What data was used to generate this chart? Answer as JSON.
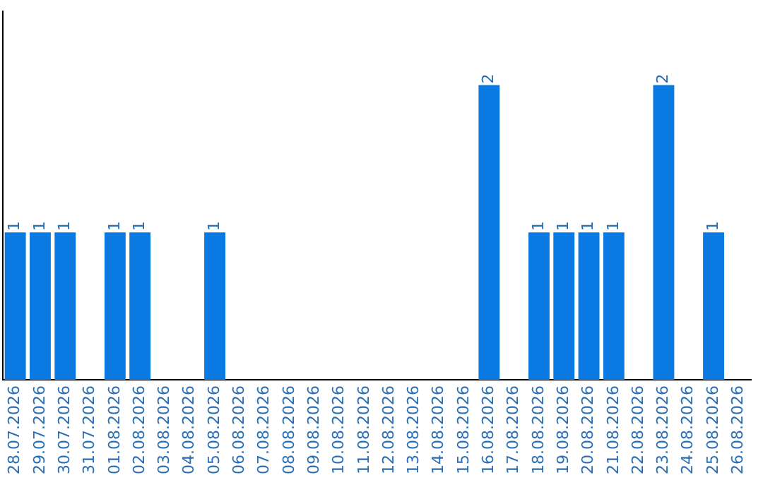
{
  "chart_data": {
    "type": "bar",
    "categories": [
      "28.07.2026",
      "29.07.2026",
      "30.07.2026",
      "31.07.2026",
      "01.08.2026",
      "02.08.2026",
      "03.08.2026",
      "04.08.2026",
      "05.08.2026",
      "06.08.2026",
      "07.08.2026",
      "08.08.2026",
      "09.08.2026",
      "10.08.2026",
      "11.08.2026",
      "12.08.2026",
      "13.08.2026",
      "14.08.2026",
      "15.08.2026",
      "16.08.2026",
      "17.08.2026",
      "18.08.2026",
      "19.08.2026",
      "20.08.2026",
      "21.08.2026",
      "22.08.2026",
      "23.08.2026",
      "24.08.2026",
      "25.08.2026",
      "26.08.2026"
    ],
    "values": [
      1,
      1,
      1,
      0,
      1,
      1,
      0,
      0,
      1,
      0,
      0,
      0,
      0,
      0,
      0,
      0,
      0,
      0,
      0,
      2,
      0,
      1,
      1,
      1,
      1,
      0,
      2,
      0,
      1,
      0
    ],
    "value_labels": [
      "1",
      "1",
      "1",
      null,
      "1",
      "1",
      null,
      null,
      "1",
      null,
      null,
      null,
      null,
      null,
      null,
      null,
      null,
      null,
      null,
      "2",
      null,
      "1",
      "1",
      "1",
      "1",
      null,
      "2",
      null,
      "1",
      null
    ],
    "color": "#0a7ae2",
    "grid": false,
    "legend": false,
    "tick_labels": "x"
  }
}
